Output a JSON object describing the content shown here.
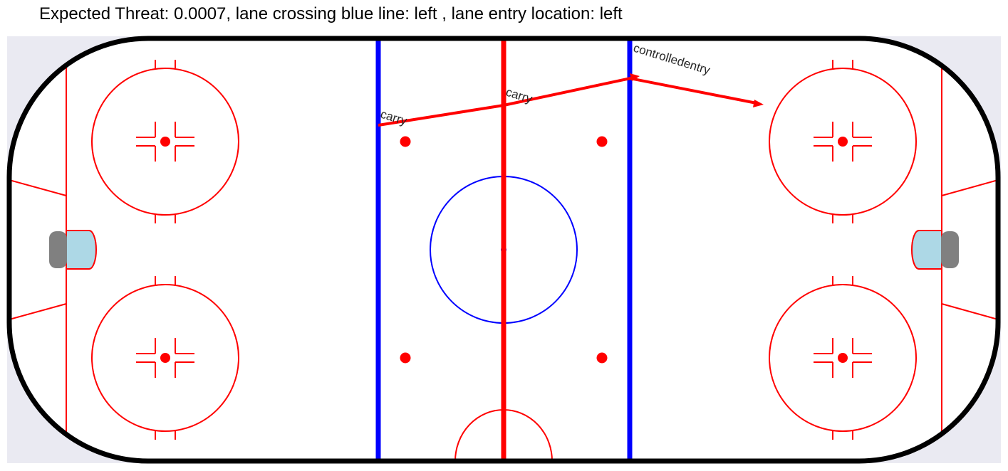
{
  "title": "Expected Threat: 0.0007, lane crossing blue line: left , lane entry location: left",
  "colors": {
    "board": "#000000",
    "background": "#eaeaf2",
    "ice": "#ffffff",
    "red_lines": "#ff0000",
    "blue_lines": "#0000ff",
    "crease": "#add8e6",
    "goal": "#808080",
    "event_arrow": "#ff0000",
    "label_text": "#262626"
  },
  "events": [
    {
      "label": "carry",
      "type": "carry"
    },
    {
      "label": "carry",
      "type": "carry"
    },
    {
      "label": "controlledentry",
      "type": "controlled entry"
    }
  ]
}
